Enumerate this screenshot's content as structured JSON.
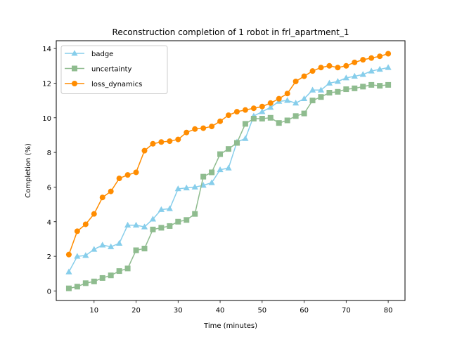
{
  "chart_data": {
    "type": "line",
    "title": "Reconstruction completion of 1 robot in frl_apartment_1",
    "xlabel": "Time (minutes)",
    "ylabel": "Completion (%)",
    "xlim": [
      1,
      84
    ],
    "ylim": [
      -0.55,
      14.45
    ],
    "xticks": [
      10,
      20,
      30,
      40,
      50,
      60,
      70,
      80
    ],
    "yticks": [
      0,
      2,
      4,
      6,
      8,
      10,
      12,
      14
    ],
    "grid": false,
    "legend_position": "upper-left",
    "x": [
      4,
      6,
      8,
      10,
      12,
      14,
      16,
      18,
      20,
      22,
      24,
      26,
      28,
      30,
      32,
      34,
      36,
      38,
      40,
      42,
      44,
      46,
      48,
      50,
      52,
      54,
      56,
      58,
      60,
      62,
      64,
      66,
      68,
      70,
      72,
      74,
      76,
      78,
      80
    ],
    "series": [
      {
        "name": "badge",
        "color": "#87CEEB",
        "marker": "triangle",
        "values": [
          1.1,
          2.0,
          2.05,
          2.4,
          2.65,
          2.55,
          2.75,
          3.8,
          3.8,
          3.7,
          4.15,
          4.7,
          4.75,
          5.9,
          5.95,
          6.0,
          6.1,
          6.25,
          7.0,
          7.1,
          8.6,
          8.8,
          10.1,
          10.35,
          10.6,
          10.95,
          11.0,
          10.85,
          11.1,
          11.6,
          11.6,
          12.0,
          12.1,
          12.3,
          12.4,
          12.5,
          12.7,
          12.8,
          12.9
        ]
      },
      {
        "name": "uncertainty",
        "color": "#8FBC8F",
        "marker": "square",
        "values": [
          0.15,
          0.25,
          0.45,
          0.55,
          0.75,
          0.9,
          1.15,
          1.3,
          2.35,
          2.45,
          3.55,
          3.65,
          3.75,
          4.0,
          4.1,
          4.45,
          6.6,
          6.85,
          7.9,
          8.2,
          8.55,
          9.65,
          9.95,
          9.95,
          10.0,
          9.7,
          9.85,
          10.1,
          10.25,
          11.0,
          11.2,
          11.45,
          11.5,
          11.65,
          11.7,
          11.8,
          11.9,
          11.85,
          11.9
        ]
      },
      {
        "name": "loss_dynamics",
        "color": "#FF8C00",
        "marker": "circle",
        "values": [
          2.1,
          3.45,
          3.85,
          4.45,
          5.4,
          5.75,
          6.5,
          6.7,
          6.85,
          8.1,
          8.5,
          8.6,
          8.65,
          8.75,
          9.15,
          9.35,
          9.4,
          9.5,
          9.8,
          10.15,
          10.35,
          10.45,
          10.55,
          10.65,
          10.85,
          11.1,
          11.4,
          12.1,
          12.4,
          12.7,
          12.9,
          13.0,
          12.9,
          13.0,
          13.2,
          13.35,
          13.45,
          13.55,
          13.7
        ]
      }
    ]
  }
}
